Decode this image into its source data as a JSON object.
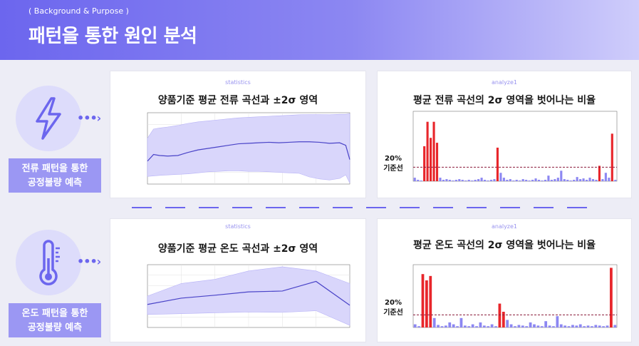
{
  "header": {
    "subtitle": "( Background & Purpose )",
    "title": "패턴을 통한 원인 분석"
  },
  "icons": {
    "current": "lightning-bolt-icon",
    "temperature": "thermometer-icon"
  },
  "labels": {
    "current": [
      "전류 패턴을 통한",
      "공정불량 예측"
    ],
    "temperature": [
      "온도 패턴을 통한",
      "공정불량 예측"
    ]
  },
  "panels": {
    "current_stats": {
      "tag": "statistics",
      "title": "양품기준 평균 전류 곡선과 ±2σ 영역"
    },
    "current_analyze": {
      "tag": "analyze1",
      "title": "평균 전류 곡선의 2σ 영역을 벗어나는 비율"
    },
    "temp_stats": {
      "tag": "statistics",
      "title": "양품기준 평균 온도 곡선과 ±2σ 영역"
    },
    "temp_analyze": {
      "tag": "analyze1",
      "title": "평균 온도 곡선의 2σ 영역을 벗어나는 비율"
    }
  },
  "annotations": {
    "current_threshold": "20%",
    "current_threshold_label": "기준선",
    "temp_threshold": "20%",
    "temp_threshold_label": "기준선"
  },
  "colors": {
    "accent": "#6c66ee",
    "band": "#d9d6fb",
    "bar_normal": "#8c87f2",
    "bar_exceed": "#e8262b",
    "threshold": "#8b1a3a"
  },
  "chart_data": [
    {
      "type": "line",
      "name": "current-band-chart",
      "xlim": [
        0,
        100
      ],
      "ylim": [
        -200,
        1200
      ],
      "xticks": [
        0,
        20,
        40,
        60,
        80,
        100
      ],
      "yticks": [
        -200,
        0,
        200,
        400,
        600,
        800,
        1000,
        1200
      ],
      "series": [
        {
          "role": "mean",
          "x": [
            0,
            3,
            6,
            10,
            15,
            20,
            25,
            30,
            35,
            40,
            45,
            50,
            55,
            60,
            65,
            70,
            75,
            80,
            85,
            90,
            95,
            98,
            100
          ],
          "y": [
            250,
            380,
            360,
            350,
            360,
            420,
            470,
            500,
            530,
            560,
            590,
            600,
            610,
            620,
            610,
            620,
            630,
            630,
            620,
            600,
            610,
            560,
            280
          ]
        },
        {
          "role": "upper",
          "x": [
            0,
            3,
            6,
            10,
            15,
            20,
            25,
            30,
            35,
            40,
            45,
            50,
            55,
            60,
            65,
            70,
            75,
            80,
            85,
            90,
            95,
            98,
            100
          ],
          "y": [
            700,
            880,
            900,
            920,
            950,
            990,
            1020,
            1040,
            1060,
            1080,
            1100,
            1110,
            1120,
            1130,
            1140,
            1150,
            1160,
            1165,
            1165,
            1160,
            1170,
            1170,
            1180
          ]
        },
        {
          "role": "lower",
          "x": [
            0,
            3,
            6,
            10,
            15,
            20,
            25,
            30,
            35,
            40,
            45,
            50,
            55,
            60,
            65,
            70,
            75,
            80,
            85,
            90,
            95,
            98,
            100
          ],
          "y": [
            -50,
            -40,
            -30,
            -20,
            -10,
            0,
            20,
            40,
            50,
            60,
            60,
            50,
            50,
            40,
            30,
            20,
            10,
            -60,
            -100,
            -120,
            -90,
            -20,
            -180
          ]
        }
      ]
    },
    {
      "type": "bar",
      "name": "current-exceed-ratio",
      "threshold": 0.2,
      "values": [
        0.05,
        0.02,
        0.01,
        0.5,
        0.85,
        0.62,
        0.85,
        0.55,
        0.05,
        0.02,
        0.03,
        0.02,
        0.01,
        0.02,
        0.03,
        0.02,
        0.01,
        0.02,
        0.01,
        0.02,
        0.03,
        0.05,
        0.02,
        0.01,
        0.02,
        0.03,
        0.48,
        0.12,
        0.05,
        0.02,
        0.03,
        0.01,
        0.02,
        0.01,
        0.03,
        0.02,
        0.01,
        0.02,
        0.04,
        0.02,
        0.01,
        0.02,
        0.08,
        0.02,
        0.03,
        0.05,
        0.15,
        0.03,
        0.02,
        0.01,
        0.02,
        0.06,
        0.03,
        0.04,
        0.02,
        0.05,
        0.03,
        0.02,
        0.22,
        0.03,
        0.12,
        0.05,
        0.68,
        0.02
      ],
      "exceed": [
        false,
        false,
        false,
        true,
        true,
        true,
        true,
        true,
        false,
        false,
        false,
        false,
        false,
        false,
        false,
        false,
        false,
        false,
        false,
        false,
        false,
        false,
        false,
        false,
        false,
        false,
        true,
        false,
        false,
        false,
        false,
        false,
        false,
        false,
        false,
        false,
        false,
        false,
        false,
        false,
        false,
        false,
        false,
        false,
        false,
        false,
        false,
        false,
        false,
        false,
        false,
        false,
        false,
        false,
        false,
        false,
        false,
        false,
        true,
        false,
        false,
        false,
        true,
        false
      ]
    },
    {
      "type": "line",
      "name": "temp-band-chart",
      "xlim": [
        0,
        6
      ],
      "ylim": [
        -250,
        1250
      ],
      "series": [
        {
          "role": "mean",
          "x": [
            0,
            1,
            2,
            3,
            4,
            5,
            6
          ],
          "y": [
            300,
            450,
            520,
            600,
            620,
            850,
            280
          ]
        },
        {
          "role": "upper",
          "x": [
            0,
            1,
            2,
            3,
            4,
            5,
            6
          ],
          "y": [
            500,
            800,
            900,
            1100,
            1200,
            1100,
            800
          ]
        },
        {
          "role": "lower",
          "x": [
            0,
            1,
            2,
            3,
            4,
            5,
            6
          ],
          "y": [
            60,
            80,
            100,
            120,
            110,
            150,
            -200
          ]
        }
      ]
    },
    {
      "type": "bar",
      "name": "temp-exceed-ratio",
      "threshold": 0.2,
      "values": [
        0.05,
        0.02,
        0.85,
        0.75,
        0.82,
        0.15,
        0.04,
        0.02,
        0.03,
        0.08,
        0.05,
        0.02,
        0.15,
        0.03,
        0.02,
        0.05,
        0.02,
        0.08,
        0.03,
        0.02,
        0.05,
        0.02,
        0.38,
        0.25,
        0.12,
        0.05,
        0.02,
        0.04,
        0.03,
        0.02,
        0.08,
        0.05,
        0.03,
        0.02,
        0.1,
        0.03,
        0.02,
        0.18,
        0.05,
        0.03,
        0.02,
        0.04,
        0.03,
        0.05,
        0.02,
        0.03,
        0.02,
        0.04,
        0.03,
        0.02,
        0.03,
        0.95,
        0.04
      ],
      "exceed": [
        false,
        false,
        true,
        true,
        true,
        false,
        false,
        false,
        false,
        false,
        false,
        false,
        false,
        false,
        false,
        false,
        false,
        false,
        false,
        false,
        false,
        false,
        true,
        true,
        false,
        false,
        false,
        false,
        false,
        false,
        false,
        false,
        false,
        false,
        false,
        false,
        false,
        false,
        false,
        false,
        false,
        false,
        false,
        false,
        false,
        false,
        false,
        false,
        false,
        false,
        false,
        true,
        false
      ]
    }
  ]
}
